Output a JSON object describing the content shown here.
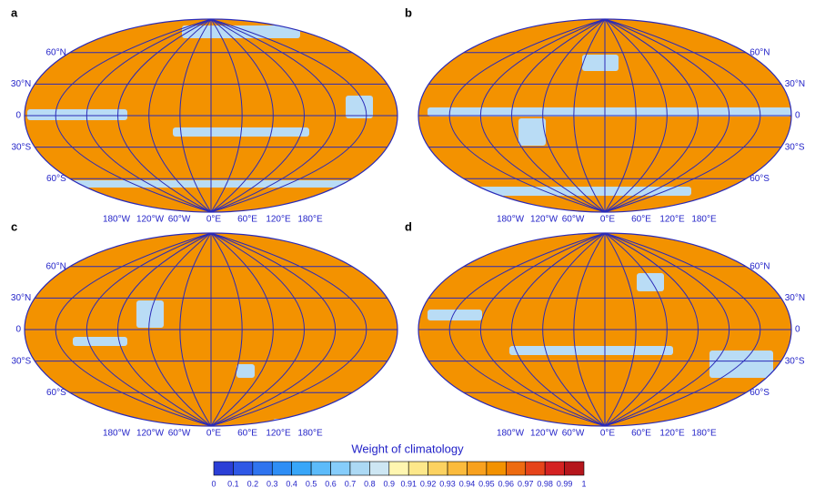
{
  "panels": [
    {
      "label": "a",
      "lat_labels": [
        "60°N",
        "30°N",
        "0",
        "30°S",
        "60°S"
      ],
      "lon_labels": [
        "180°W",
        "120°W",
        "60°W",
        "0°E",
        "60°E",
        "120°E",
        "180°E"
      ]
    },
    {
      "label": "b",
      "lat_labels": [
        "60°N",
        "30°N",
        "0",
        "30°S",
        "60°S"
      ],
      "lon_labels": [
        "180°W",
        "120°W",
        "60°W",
        "0°E",
        "60°E",
        "120°E",
        "180°E"
      ]
    },
    {
      "label": "c",
      "lat_labels": [
        "60°N",
        "30°N",
        "0",
        "30°S",
        "60°S"
      ],
      "lon_labels": [
        "180°W",
        "120°W",
        "60°W",
        "0°E",
        "60°E",
        "120°E",
        "180°E"
      ]
    },
    {
      "label": "d",
      "lat_labels": [
        "60°N",
        "30°N",
        "0",
        "30°S",
        "60°S"
      ],
      "lon_labels": [
        "180°W",
        "120°W",
        "60°W",
        "0°E",
        "60°E",
        "120°E",
        "180°E"
      ]
    }
  ],
  "colorbar": {
    "title": "Weight of climatology",
    "labels": [
      "0",
      "0.1",
      "0.2",
      "0.3",
      "0.4",
      "0.5",
      "0.6",
      "0.7",
      "0.8",
      "0.9",
      "0.91",
      "0.92",
      "0.93",
      "0.94",
      "0.95",
      "0.96",
      "0.97",
      "0.98",
      "0.99",
      "1"
    ],
    "colors": [
      "#2b3fd6",
      "#2f58e6",
      "#2f74ef",
      "#2e8ef5",
      "#38a6f8",
      "#5cbbfa",
      "#86cdfb",
      "#acd9f4",
      "#cde6f3",
      "#fff6b0",
      "#fde88a",
      "#fcd260",
      "#fbbb3c",
      "#f8a11e",
      "#f39200",
      "#ee6b10",
      "#e6441a",
      "#d42222",
      "#b5161c"
    ]
  }
}
